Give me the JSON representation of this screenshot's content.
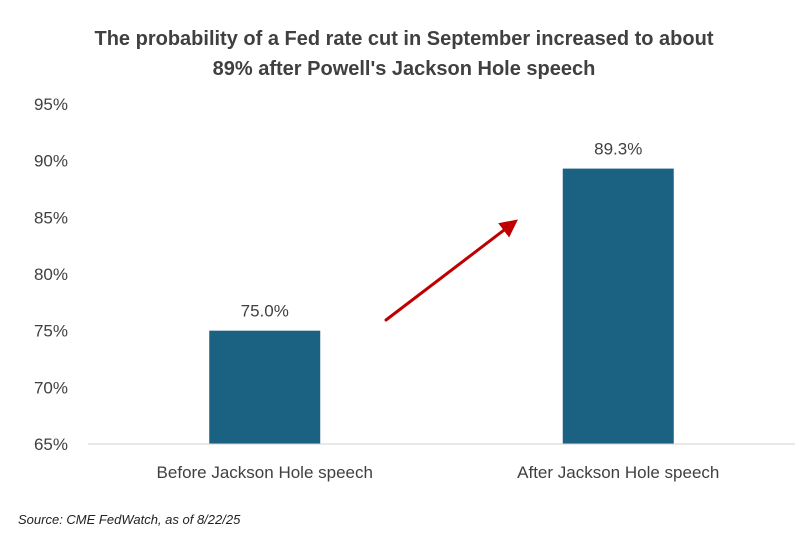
{
  "title_lines": [
    "The probability of a Fed rate cut in September increased to about",
    "89% after Powell's Jackson Hole speech"
  ],
  "source": "Source: CME FedWatch, as of 8/22/25",
  "colors": {
    "bar": "#1a6182",
    "arrow": "#c00000",
    "text": "#404040",
    "axis": "#d0d0d0"
  },
  "chart_data": {
    "type": "bar",
    "categories": [
      "Before Jackson Hole speech",
      "After Jackson Hole speech"
    ],
    "values": [
      75.0,
      89.3
    ],
    "data_labels": [
      "75.0%",
      "89.3%"
    ],
    "ylim": [
      65,
      95
    ],
    "yticks": [
      65,
      70,
      75,
      80,
      85,
      90,
      95
    ],
    "ytick_labels": [
      "65%",
      "70%",
      "75%",
      "80%",
      "85%",
      "90%",
      "95%"
    ],
    "grid": false,
    "legend": "none",
    "annotation": "arrow-up-right"
  }
}
